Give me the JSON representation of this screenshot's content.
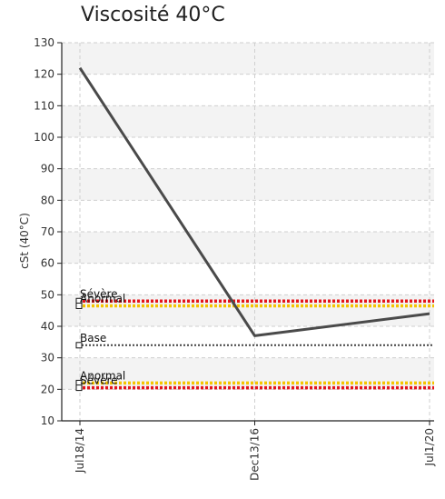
{
  "chart_data": {
    "type": "line",
    "title": "Viscosité 40°C",
    "ylabel": "cSt (40°C)",
    "xlabel": "",
    "ylim": [
      10,
      130
    ],
    "yticks": [
      10,
      20,
      30,
      40,
      50,
      60,
      70,
      80,
      90,
      100,
      110,
      120,
      130
    ],
    "categories": [
      "Jul18/14",
      "Dec13/16",
      "Jul1/20"
    ],
    "series": [
      {
        "values": [
          122,
          37,
          44
        ],
        "color": "#4a4a4a"
      }
    ],
    "reference_lines": [
      {
        "label": "Sévère",
        "value": 48,
        "color": "#e4141b",
        "marker": ""
      },
      {
        "label": "Anormal",
        "value": 46.5,
        "color": "#f5c400",
        "marker": ""
      },
      {
        "label": "Base",
        "value": 34,
        "color": "#444444",
        "marker": ""
      },
      {
        "label": "Anormal",
        "value": 22,
        "color": "#f5c400",
        "marker": ""
      },
      {
        "label": "Sévère",
        "value": 20.5,
        "color": "#e4141b",
        "marker": ""
      }
    ],
    "grid": true,
    "legend": "none"
  }
}
